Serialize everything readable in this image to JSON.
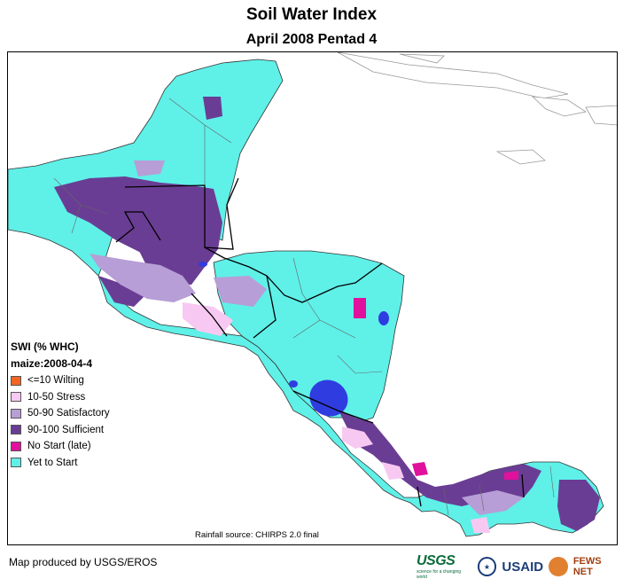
{
  "title": "Soil Water Index",
  "subtitle": "April 2008 Pentad 4",
  "legend": {
    "header_line1": "SWI (% WHC)",
    "header_line2": "maize:2008-04-4",
    "items": [
      {
        "label": "<=10 Wilting",
        "color": "#f26522"
      },
      {
        "label": "10-50 Stress",
        "color": "#f7c9f2"
      },
      {
        "label": "50-90 Satisfactory",
        "color": "#b79ed6"
      },
      {
        "label": "90-100 Sufficient",
        "color": "#6a3d94"
      },
      {
        "label": "No Start (late)",
        "color": "#e0119c"
      },
      {
        "label": "Yet to Start",
        "color": "#5ff0e8"
      }
    ]
  },
  "rainfall_source": "Rainfall source: CHIRPS 2.0 final",
  "credit": "Map produced by USGS/EROS",
  "logos": {
    "usgs": "USGS",
    "usgs_tagline": "science for a changing world",
    "usaid": "USAID",
    "fewsnet": "FEWS NET"
  },
  "colors": {
    "water": "#2f3ce0",
    "border": "#000000",
    "admin": "#666666"
  }
}
